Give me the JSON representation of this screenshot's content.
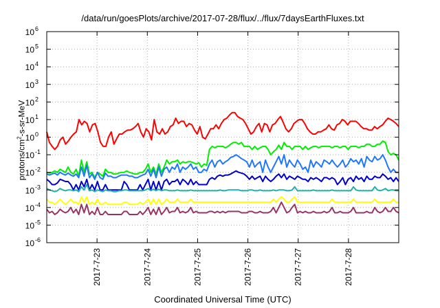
{
  "chart_data": {
    "type": "line",
    "title": "/data/run/goesPlots/archive/2017-07-28/flux/../flux/7daysEarthFluxes.txt",
    "xlabel": "Coordinated Universal Time (UTC)",
    "ylabel": "protons/cm2-s-sr-MeV",
    "ylabel_parts": {
      "before": "protons/cm",
      "sup": "2",
      "after": "-s-sr-MeV"
    },
    "yscale": "log",
    "ylim_exponents": [
      -6,
      6
    ],
    "y_tick_base": "10",
    "y_tick_exponents": [
      "-6",
      "-5",
      "-4",
      "-3",
      "-2",
      "-1",
      "0",
      "1",
      "2",
      "3",
      "4",
      "5",
      "6"
    ],
    "xlim_days": [
      "2017-07-22",
      "2017-07-29"
    ],
    "x_tick_labels": [
      "2017-7-23",
      "2017-7-24",
      "2017-7-25",
      "2017-7-26",
      "2017-7-27",
      "2017-7-28"
    ],
    "grid": true,
    "legend": "none",
    "series": [
      {
        "color": "#ff0000",
        "values": [
          2,
          0.5,
          0.3,
          0.2,
          0.3,
          0.7,
          1,
          0.4,
          0.6,
          1,
          1.5,
          2,
          10,
          5,
          8,
          6,
          2,
          5,
          6,
          2,
          0.5,
          0.3,
          0.3,
          1,
          2,
          0.4,
          0.8,
          1.5,
          1.5,
          2,
          2.5,
          2.5,
          3,
          4,
          6,
          2,
          1,
          3,
          2,
          0.7,
          10,
          2,
          1.5,
          3,
          1.5,
          2,
          4,
          5,
          12,
          6,
          8,
          8,
          4,
          6,
          5,
          2.5,
          1.5,
          4,
          1,
          0.8,
          1.5,
          3,
          3,
          5,
          3,
          6,
          10,
          12,
          18,
          25,
          25,
          15,
          12,
          10,
          6,
          3,
          1.5,
          2,
          4,
          6,
          2,
          6,
          5,
          2,
          5,
          6,
          10,
          15,
          7,
          3,
          2,
          3,
          6,
          8,
          10,
          10,
          6,
          3,
          2,
          1.5,
          1.5,
          2,
          2,
          2.5,
          3,
          5,
          3,
          2.5,
          5,
          6,
          10,
          8,
          5,
          8,
          8,
          8,
          6,
          4,
          3,
          3,
          2.5,
          2.5,
          4,
          3,
          4,
          5,
          8,
          12,
          10,
          8,
          6,
          4
        ]
      },
      {
        "color": "#00ee00",
        "values": [
          0.01,
          0.009,
          0.01,
          0.012,
          0.01,
          0.015,
          0.012,
          0.01,
          0.02,
          0.01,
          0.008,
          0.015,
          0.006,
          0.05,
          0.01,
          0.04,
          0.008,
          0.01,
          0.005,
          0.01,
          0.008,
          0.006,
          0.015,
          0.01,
          0.01,
          0.008,
          0.008,
          0.009,
          0.01,
          0.01,
          0.012,
          0.01,
          0.009,
          0.008,
          0.008,
          0.01,
          0.01,
          0.015,
          0.03,
          0.01,
          0.02,
          0.008,
          0.03,
          0.01,
          0.02,
          0.05,
          0.03,
          0.04,
          0.04,
          0.05,
          0.03,
          0.04,
          0.035,
          0.04,
          0.04,
          0.035,
          0.03,
          0.035,
          0.02,
          0.03,
          0.025,
          0.2,
          0.3,
          0.25,
          0.3,
          0.3,
          0.3,
          0.25,
          0.3,
          0.4,
          0.5,
          0.5,
          0.4,
          0.5,
          0.3,
          0.3,
          0.3,
          0.2,
          0.3,
          0.2,
          0.25,
          0.3,
          0.3,
          0.2,
          0.1,
          0.15,
          0.2,
          0.35,
          0.2,
          0.5,
          0.3,
          0.3,
          0.2,
          0.3,
          0.3,
          0.3,
          0.2,
          0.3,
          0.2,
          0.25,
          0.3,
          0.3,
          0.25,
          0.3,
          0.3,
          0.3,
          0.3,
          0.25,
          0.3,
          0.3,
          0.25,
          0.3,
          0.3,
          0.2,
          0.3,
          0.3,
          0.3,
          0.25,
          0.3,
          0.3,
          0.4,
          0.4,
          0.3,
          0.3,
          0.4,
          0.4,
          0.6,
          0.5,
          0.15,
          0.1,
          0.12,
          0.1,
          0.05
        ]
      },
      {
        "color": "#1f77ff",
        "values": [
          0.008,
          0.007,
          0.008,
          0.009,
          0.007,
          0.01,
          0.008,
          0.007,
          0.009,
          0.007,
          0.006,
          0.008,
          0.005,
          0.02,
          0.006,
          0.025,
          0.005,
          0.008,
          0.004,
          0.01,
          0.005,
          0.004,
          0.009,
          0.006,
          0.006,
          0.005,
          0.005,
          0.006,
          0.007,
          0.007,
          0.007,
          0.006,
          0.006,
          0.005,
          0.005,
          0.006,
          0.007,
          0.008,
          0.015,
          0.006,
          0.015,
          0.005,
          0.02,
          0.006,
          0.015,
          0.02,
          0.01,
          0.02,
          0.015,
          0.03,
          0.01,
          0.02,
          0.015,
          0.02,
          0.03,
          0.015,
          0.02,
          0.01,
          0.01,
          0.015,
          0.012,
          0.03,
          0.05,
          0.02,
          0.04,
          0.05,
          0.03,
          0.04,
          0.05,
          0.07,
          0.08,
          0.1,
          0.08,
          0.06,
          0.05,
          0.04,
          0.02,
          0.05,
          0.02,
          0.03,
          0.04,
          0.01,
          0.05,
          0.02,
          0.01,
          0.02,
          0.04,
          0.08,
          0.03,
          0.1,
          0.02,
          0.05,
          0.03,
          0.02,
          0.05,
          0.03,
          0.015,
          0.02,
          0.01,
          0.05,
          0.02,
          0.04,
          0.03,
          0.02,
          0.05,
          0.04,
          0.03,
          0.05,
          0.03,
          0.02,
          0.03,
          0.05,
          0.02,
          0.03,
          0.06,
          0.04,
          0.05,
          0.03,
          0.06,
          0.02,
          0.08,
          0.05,
          0.04,
          0.08,
          0.05,
          0.06,
          0.1,
          0.05,
          0.02,
          0.01,
          0.015,
          0.01,
          0.01
        ]
      },
      {
        "color": "#0000cc",
        "values": [
          0.004,
          0.003,
          0.002,
          0.002,
          0.0025,
          0.004,
          0.0035,
          0.003,
          0.003,
          0.002,
          0.001,
          0.002,
          0.001,
          0.003,
          0.0015,
          0.004,
          0.001,
          0.002,
          0.001,
          0.003,
          0.001,
          0.001,
          0.002,
          0.001,
          0.001,
          0.001,
          0.001,
          0.001,
          0.001,
          0.003,
          0.002,
          0.001,
          0.001,
          0.001,
          0.001,
          0.002,
          0.001,
          0.002,
          0.004,
          0.001,
          0.003,
          0.001,
          0.003,
          0.001,
          0.003,
          0.004,
          0.002,
          0.003,
          0.003,
          0.004,
          0.002,
          0.004,
          0.003,
          0.002,
          0.004,
          0.002,
          0.003,
          0.002,
          0.002,
          0.002,
          0.002,
          0.004,
          0.005,
          0.004,
          0.006,
          0.007,
          0.006,
          0.007,
          0.007,
          0.008,
          0.01,
          0.012,
          0.01,
          0.009,
          0.008,
          0.006,
          0.004,
          0.006,
          0.004,
          0.005,
          0.006,
          0.003,
          0.006,
          0.004,
          0.003,
          0.004,
          0.006,
          0.008,
          0.005,
          0.008,
          0.004,
          0.006,
          0.005,
          0.004,
          0.006,
          0.005,
          0.004,
          0.004,
          0.003,
          0.005,
          0.004,
          0.005,
          0.004,
          0.003,
          0.005,
          0.005,
          0.004,
          0.005,
          0.004,
          0.002,
          0.003,
          0.005,
          0.002,
          0.004,
          0.005,
          0.003,
          0.006,
          0.004,
          0.005,
          0.003,
          0.006,
          0.004,
          0.004,
          0.006,
          0.005,
          0.005,
          0.008,
          0.006,
          0.004,
          0.005,
          0.003,
          0.005,
          0.003
        ]
      },
      {
        "color": "#20b2aa",
        "values": [
          0.0012,
          0.001,
          0.0009,
          0.0008,
          0.0009,
          0.0012,
          0.001,
          0.0009,
          0.001,
          0.001,
          0.0009,
          0.001,
          0.0008,
          0.0015,
          0.001,
          0.002,
          0.0009,
          0.001,
          0.0008,
          0.001,
          0.0009,
          0.0008,
          0.001,
          0.0009,
          0.0009,
          0.0008,
          0.0008,
          0.0009,
          0.0009,
          0.001,
          0.001,
          0.0009,
          0.0009,
          0.0009,
          0.0009,
          0.0009,
          0.0009,
          0.001,
          0.0012,
          0.0009,
          0.0011,
          0.0009,
          0.0011,
          0.0009,
          0.001,
          0.001,
          0.0009,
          0.0009,
          0.0009,
          0.001,
          0.0009,
          0.0009,
          0.0009,
          0.0009,
          0.001,
          0.0009,
          0.0009,
          0.0009,
          0.0009,
          0.0009,
          0.0009,
          0.0009,
          0.0009,
          0.0009,
          0.0009,
          0.001,
          0.0009,
          0.0009,
          0.001,
          0.001,
          0.001,
          0.001,
          0.001,
          0.0009,
          0.0009,
          0.0009,
          0.001,
          0.001,
          0.0009,
          0.0009,
          0.001,
          0.0009,
          0.0009,
          0.0009,
          0.0009,
          0.001,
          0.0009,
          0.001,
          0.001,
          0.001,
          0.0009,
          0.0009,
          0.001,
          0.0015,
          0.0009,
          0.0009,
          0.0009,
          0.0009,
          0.0009,
          0.0009,
          0.001,
          0.0009,
          0.0009,
          0.0009,
          0.0009,
          0.0009,
          0.0009,
          0.001,
          0.0009,
          0.0009,
          0.0009,
          0.0009,
          0.0009,
          0.0009,
          0.0009,
          0.0015,
          0.001,
          0.0009,
          0.0009,
          0.0009,
          0.0009,
          0.0009,
          0.0009,
          0.0015,
          0.001,
          0.0009,
          0.001,
          0.0012,
          0.0009,
          0.001,
          0.001,
          0.0009,
          0.0009
        ]
      },
      {
        "color": "#ffff00",
        "values": [
          0.0003,
          0.0002,
          0.0002,
          0.00015,
          0.0002,
          0.0003,
          0.0002,
          0.00015,
          0.0002,
          0.0003,
          0.0002,
          0.0002,
          0.00015,
          0.0004,
          0.0002,
          0.0004,
          0.00015,
          0.0002,
          0.00015,
          0.0003,
          0.00015,
          0.00015,
          0.0002,
          0.00015,
          0.00015,
          0.00015,
          0.00015,
          0.00015,
          0.00015,
          0.0002,
          0.0002,
          0.00015,
          0.00015,
          0.00015,
          0.00015,
          0.0002,
          0.00015,
          0.0002,
          0.0003,
          0.00015,
          0.0003,
          0.00015,
          0.0003,
          0.00015,
          0.0002,
          0.0003,
          0.0002,
          0.0002,
          0.0002,
          0.0003,
          0.0002,
          0.0002,
          0.0002,
          0.0002,
          0.0003,
          0.0002,
          0.0002,
          0.0002,
          0.0002,
          0.0002,
          0.0002,
          0.0002,
          0.0002,
          0.0002,
          0.0002,
          0.0002,
          0.0002,
          0.0002,
          0.0002,
          0.0002,
          0.0002,
          0.0002,
          0.0002,
          0.0002,
          0.0002,
          0.0002,
          0.0002,
          0.0002,
          0.0002,
          0.0002,
          0.0002,
          0.0002,
          0.0002,
          0.0002,
          0.0002,
          0.0003,
          0.0002,
          0.0003,
          0.0004,
          0.0003,
          0.0002,
          0.0002,
          0.0003,
          0.0004,
          0.0002,
          0.0002,
          0.0002,
          0.0002,
          0.0002,
          0.0002,
          0.0002,
          0.0002,
          0.0002,
          0.0002,
          0.0002,
          0.0002,
          0.0002,
          0.0003,
          0.0002,
          0.0002,
          0.0002,
          0.0002,
          0.0002,
          0.0002,
          0.0002,
          0.0003,
          0.0002,
          0.0002,
          0.0002,
          0.0002,
          0.0002,
          0.0002,
          0.0002,
          0.0003,
          0.0002,
          0.0002,
          0.0002,
          0.0002,
          0.0002,
          0.0002,
          0.0003,
          0.0002,
          0.0002
        ]
      },
      {
        "color": "#993366",
        "values": [
          8e-05,
          5e-05,
          6e-05,
          4e-05,
          5e-05,
          8e-05,
          6e-05,
          5e-05,
          6e-05,
          0.0001,
          5e-05,
          8e-05,
          4e-05,
          0.00015,
          5e-05,
          0.00015,
          4e-05,
          6e-05,
          4e-05,
          0.0001,
          4e-05,
          4e-05,
          6e-05,
          4e-05,
          4e-05,
          4e-05,
          4e-05,
          4e-05,
          4e-05,
          6e-05,
          6e-05,
          4e-05,
          4e-05,
          4e-05,
          4e-05,
          6e-05,
          4e-05,
          6e-05,
          0.0001,
          4e-05,
          8e-05,
          4e-05,
          0.0001,
          4e-05,
          6e-05,
          0.0001,
          5e-05,
          6e-05,
          6e-05,
          0.0001,
          5e-05,
          6e-05,
          5e-05,
          6e-05,
          0.0001,
          5e-05,
          6e-05,
          5e-05,
          5e-05,
          5e-05,
          5e-05,
          6e-05,
          6e-05,
          5e-05,
          6e-05,
          5e-05,
          6e-05,
          5e-05,
          6e-05,
          6e-05,
          6e-05,
          6e-05,
          6e-05,
          5e-05,
          5e-05,
          5e-05,
          6e-05,
          6e-05,
          5e-05,
          5e-05,
          6e-05,
          5e-05,
          5e-05,
          5e-05,
          6e-05,
          0.0001,
          5e-05,
          0.0001,
          0.0002,
          0.0001,
          5e-05,
          6e-05,
          0.0001,
          0.00015,
          5e-05,
          6e-05,
          5e-05,
          6e-05,
          5e-05,
          5e-05,
          6e-05,
          5e-05,
          5e-05,
          5e-05,
          6e-05,
          5e-05,
          6e-05,
          0.0001,
          5e-05,
          5e-05,
          6e-05,
          5e-05,
          5e-05,
          5e-05,
          6e-05,
          0.0001,
          5e-05,
          5e-05,
          5e-05,
          5e-05,
          6e-05,
          5e-05,
          5e-05,
          0.0001,
          6e-05,
          5e-05,
          6e-05,
          0.0001,
          6e-05,
          6e-05,
          0.0001,
          6e-05,
          5e-05
        ]
      }
    ]
  }
}
